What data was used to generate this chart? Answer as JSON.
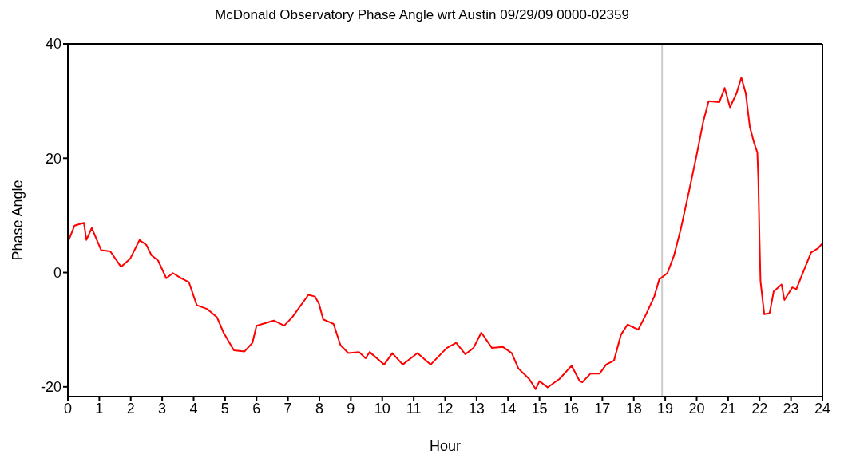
{
  "chart_data": {
    "type": "line",
    "title": "McDonald Observatory Phase Angle wrt Austin 09/29/09 0000-02359",
    "xlabel": "Hour",
    "ylabel": "Phase Angle",
    "xlim": [
      0,
      24
    ],
    "xticks": [
      0,
      1,
      2,
      3,
      4,
      5,
      6,
      7,
      8,
      9,
      10,
      11,
      12,
      13,
      14,
      15,
      16,
      17,
      18,
      19,
      20,
      21,
      22,
      23,
      24
    ],
    "ylim": [
      -21.7,
      40
    ],
    "yticks": [
      -20,
      0,
      20,
      40
    ],
    "grid": false,
    "legend": false,
    "marker": "none",
    "line_style": "solid",
    "ref_lines": [
      {
        "axis": "x",
        "value": 18.9,
        "color": "#cccccc"
      }
    ],
    "series": [
      {
        "color": "#ff0000",
        "x": [
          0,
          0.21,
          0.51,
          0.59,
          0.76,
          1.06,
          1.35,
          1.69,
          1.98,
          2.28,
          2.5,
          2.66,
          2.87,
          3.13,
          3.34,
          3.6,
          3.85,
          4.1,
          4.44,
          4.74,
          4.95,
          5.28,
          5.62,
          5.87,
          6.0,
          6.55,
          6.88,
          7.14,
          7.65,
          7.86,
          7.99,
          8.12,
          8.33,
          8.45,
          8.67,
          8.92,
          9.26,
          9.47,
          9.6,
          10.06,
          10.32,
          10.65,
          11.12,
          11.54,
          12.05,
          12.35,
          12.64,
          12.9,
          13.15,
          13.49,
          13.83,
          14.12,
          14.33,
          14.67,
          14.88,
          15.0,
          15.26,
          15.64,
          16.02,
          16.28,
          16.36,
          16.62,
          16.91,
          17.12,
          17.37,
          17.59,
          17.8,
          18.14,
          18.39,
          18.65,
          18.81,
          19.07,
          19.28,
          19.49,
          19.74,
          20.0,
          20.21,
          20.38,
          20.72,
          20.89,
          21.06,
          21.27,
          21.42,
          21.56,
          21.69,
          21.82,
          21.93,
          21.96,
          22.0,
          22.03,
          22.15,
          22.32,
          22.45,
          22.7,
          22.79,
          23.04,
          23.17,
          23.47,
          23.64,
          23.85,
          24.0
        ],
        "values": [
          5.3,
          8.2,
          8.7,
          5.7,
          7.8,
          3.9,
          3.7,
          1.0,
          2.4,
          5.7,
          4.8,
          3.0,
          2.1,
          -1.0,
          -0.1,
          -1.0,
          -1.7,
          -5.7,
          -6.4,
          -7.8,
          -10.5,
          -13.6,
          -13.8,
          -12.3,
          -9.3,
          -8.4,
          -9.3,
          -7.8,
          -3.9,
          -4.2,
          -5.5,
          -8.2,
          -8.7,
          -9.0,
          -12.7,
          -14.1,
          -13.9,
          -15.0,
          -13.9,
          -16.1,
          -14.1,
          -16.1,
          -14.1,
          -16.1,
          -13.2,
          -12.3,
          -14.3,
          -13.2,
          -10.5,
          -13.2,
          -13.0,
          -14.1,
          -16.8,
          -18.6,
          -20.4,
          -19.0,
          -20.1,
          -18.6,
          -16.3,
          -19.0,
          -19.2,
          -17.7,
          -17.7,
          -16.1,
          -15.4,
          -10.9,
          -9.1,
          -10.0,
          -7.3,
          -4.2,
          -1.2,
          -0.1,
          3.0,
          7.5,
          13.8,
          20.6,
          26.4,
          30.0,
          29.8,
          32.3,
          28.9,
          31.4,
          34.1,
          31.4,
          25.5,
          22.8,
          21.0,
          16.5,
          5.7,
          -1.5,
          -7.3,
          -7.1,
          -3.3,
          -2.1,
          -4.8,
          -2.6,
          -2.9,
          1.2,
          3.5,
          4.2,
          5.1
        ]
      }
    ]
  }
}
